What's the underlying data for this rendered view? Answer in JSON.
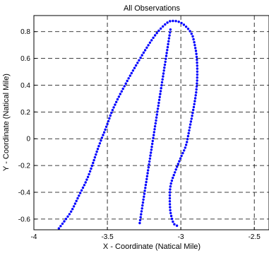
{
  "chart_data": {
    "type": "scatter",
    "title": "All Observations",
    "xlabel": "X - Coordinate (Natical Mile)",
    "ylabel": "Y - Coordinate (Natical Mile)",
    "xlim": [
      -4,
      -2.4
    ],
    "ylim": [
      -0.68,
      0.92
    ],
    "xticks": [
      -4,
      -3.5,
      -3,
      -2.5
    ],
    "xtick_labels": [
      "-4",
      "-3.5",
      "-3",
      "-2.5"
    ],
    "yticks": [
      -0.6,
      -0.4,
      -0.2,
      0,
      0.2,
      0.4,
      0.6,
      0.8
    ],
    "ytick_labels": [
      "-0.6",
      "-0.4",
      "-0.2",
      "0",
      "0.2",
      "0.4",
      "0.6",
      "0.8"
    ],
    "grid": true,
    "grid_style": "dashed",
    "marker_color": "#0000ff",
    "path": [
      [
        -3.83,
        -0.67
      ],
      [
        -3.75,
        -0.55
      ],
      [
        -3.7,
        -0.44
      ],
      [
        -3.63,
        -0.28
      ],
      [
        -3.56,
        -0.06
      ],
      [
        -3.51,
        0.08
      ],
      [
        -3.45,
        0.25
      ],
      [
        -3.33,
        0.5
      ],
      [
        -3.19,
        0.75
      ],
      [
        -3.1,
        0.86
      ],
      [
        -3.05,
        0.88
      ],
      [
        -2.99,
        0.86
      ],
      [
        -2.93,
        0.79
      ],
      [
        -2.905,
        0.7
      ],
      [
        -2.89,
        0.58
      ],
      [
        -2.89,
        0.42
      ],
      [
        -2.905,
        0.28
      ],
      [
        -2.94,
        0.08
      ],
      [
        -2.965,
        -0.05
      ],
      [
        -3.0,
        -0.14
      ],
      [
        -3.04,
        -0.25
      ],
      [
        -3.07,
        -0.35
      ],
      [
        -3.075,
        -0.46
      ],
      [
        -3.07,
        -0.55
      ],
      [
        -3.05,
        -0.63
      ],
      [
        -3.025,
        -0.65
      ]
    ],
    "segment2": {
      "from": [
        -3.28,
        -0.63
      ],
      "to": [
        -3.07,
        0.82
      ]
    }
  }
}
